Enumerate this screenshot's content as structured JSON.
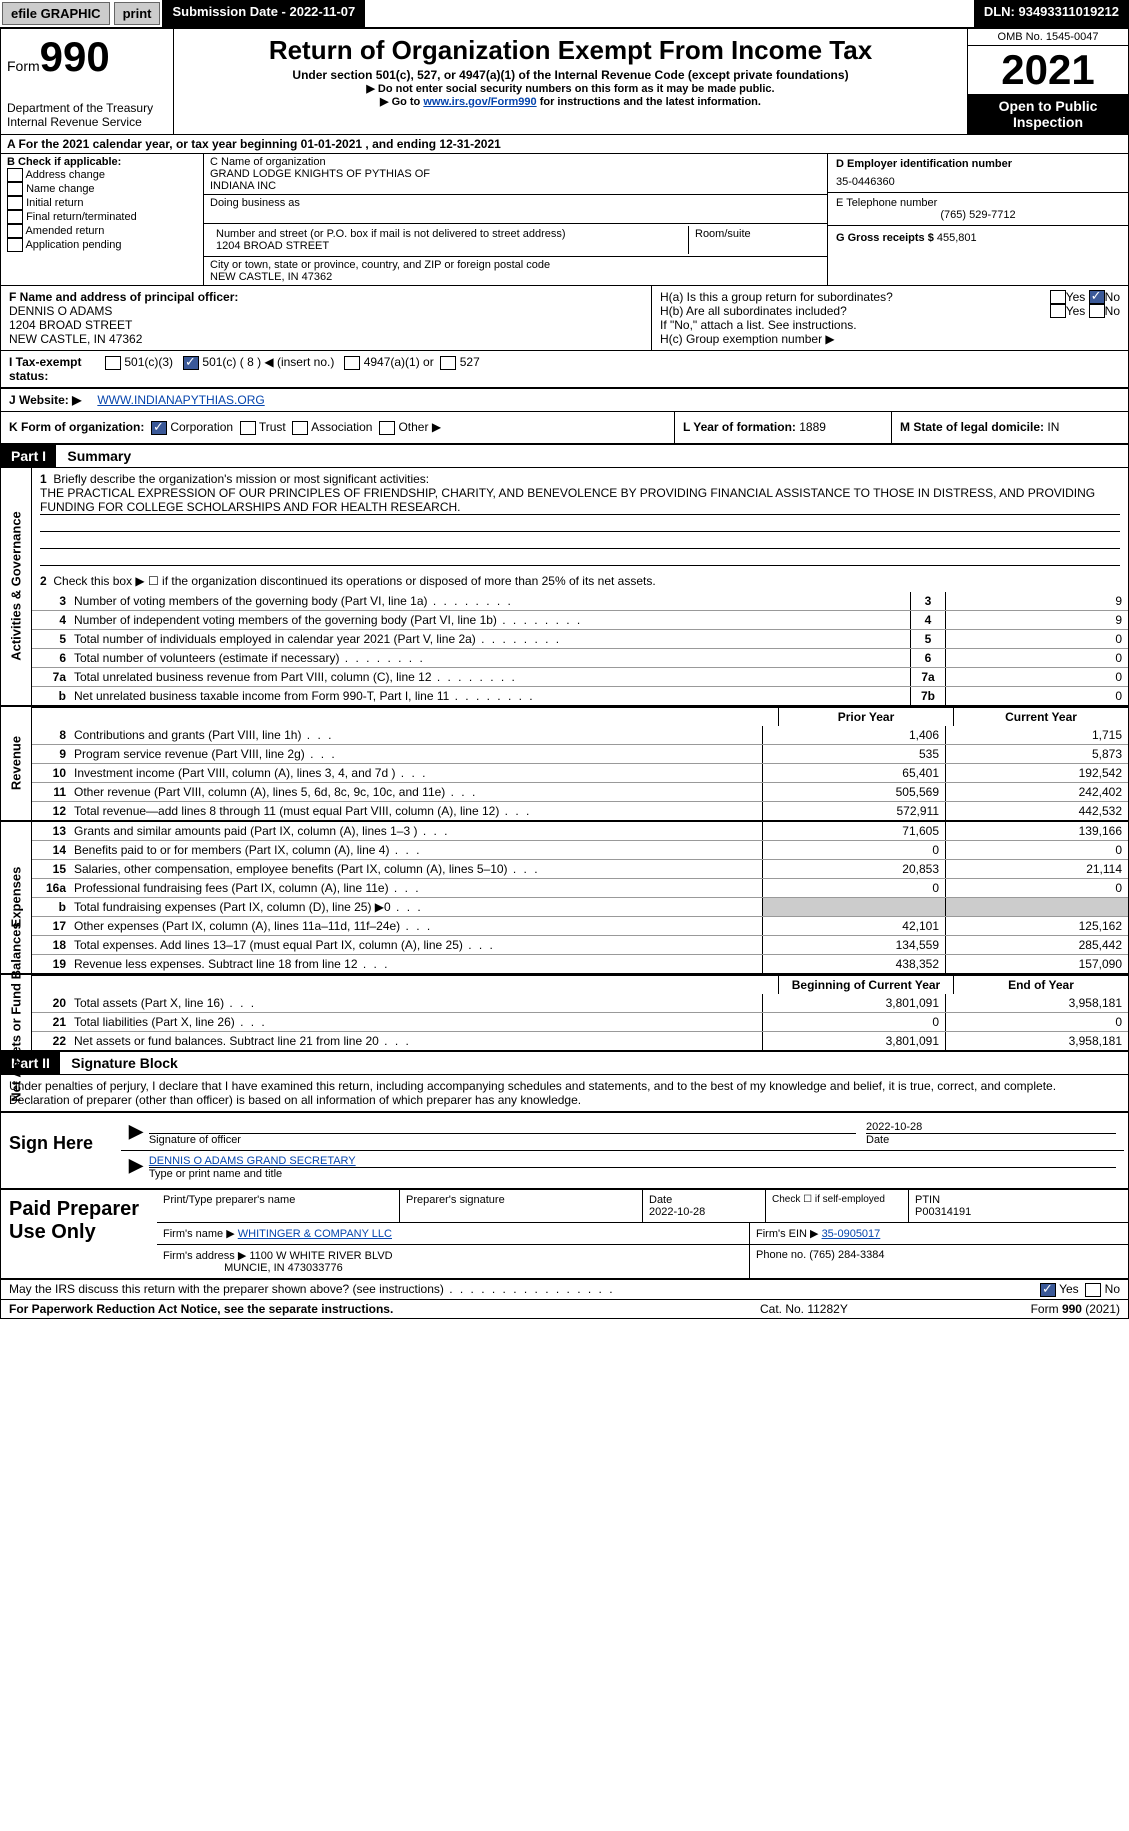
{
  "topbar": {
    "efile": "efile GRAPHIC",
    "print": "print",
    "submission": "Submission Date - 2022-11-07",
    "dln": "DLN: 93493311019212"
  },
  "header": {
    "form": "Form",
    "formno": "990",
    "dept": "Department of the Treasury",
    "irs": "Internal Revenue Service",
    "title": "Return of Organization Exempt From Income Tax",
    "sub1": "Under section 501(c), 527, or 4947(a)(1) of the Internal Revenue Code (except private foundations)",
    "sub2": "▶ Do not enter social security numbers on this form as it may be made public.",
    "sub3a": "▶ Go to ",
    "sub3link": "www.irs.gov/Form990",
    "sub3b": " for instructions and the latest information.",
    "omb": "OMB No. 1545-0047",
    "year": "2021",
    "open": "Open to Public Inspection"
  },
  "rowA": {
    "label": "A For the 2021 calendar year, or tax year beginning ",
    "begin": "01-01-2021",
    "mid": " , and ending ",
    "end": "12-31-2021"
  },
  "colB": {
    "label": "B Check if applicable:",
    "addr": "Address change",
    "name": "Name change",
    "init": "Initial return",
    "final": "Final return/terminated",
    "amend": "Amended return",
    "app": "Application pending"
  },
  "colC": {
    "clabel": "C Name of organization",
    "org1": "GRAND LODGE KNIGHTS OF PYTHIAS OF",
    "org2": "INDIANA INC",
    "dba": "Doing business as",
    "addrlabel": "Number and street (or P.O. box if mail is not delivered to street address)",
    "addr": "1204 BROAD STREET",
    "room": "Room/suite",
    "citylabel": "City or town, state or province, country, and ZIP or foreign postal code",
    "city": "NEW CASTLE, IN  47362"
  },
  "colD": {
    "dlabel": "D Employer identification number",
    "ein": "35-0446360",
    "elabel": "E Telephone number",
    "phone": "(765) 529-7712",
    "glabel": "G Gross receipts $ ",
    "gross": "455,801"
  },
  "rowF": {
    "flabel": "F Name and address of principal officer:",
    "name": "DENNIS O ADAMS",
    "addr": "1204 BROAD STREET",
    "city": "NEW CASTLE, IN  47362",
    "ha": "H(a)  Is this a group return for subordinates?",
    "hb": "H(b)  Are all subordinates included?",
    "hbnote": "If \"No,\" attach a list. See instructions.",
    "hc": "H(c)  Group exemption number ▶",
    "yes": "Yes",
    "no": "No"
  },
  "rowI": {
    "label": "I  Tax-exempt status:",
    "o501c3": "501(c)(3)",
    "o501c": "501(c) ( 8 ) ◀ (insert no.)",
    "o4947": "4947(a)(1) or",
    "o527": "527"
  },
  "rowJ": {
    "label": "J  Website: ▶",
    "url": "WWW.INDIANAPYTHIAS.ORG"
  },
  "rowK": {
    "label": "K Form of organization:",
    "corp": "Corporation",
    "trust": "Trust",
    "assoc": "Association",
    "other": "Other ▶"
  },
  "rowL": {
    "label": "L Year of formation: ",
    "val": "1889"
  },
  "rowM": {
    "label": "M State of legal domicile: ",
    "val": "IN"
  },
  "part1": {
    "hdr": "Part I",
    "title": "Summary"
  },
  "mission": {
    "label": "Briefly describe the organization's mission or most significant activities:",
    "text": "THE PRACTICAL EXPRESSION OF OUR PRINCIPLES OF FRIENDSHIP, CHARITY, AND BENEVOLENCE BY PROVIDING FINANCIAL ASSISTANCE TO THOSE IN DISTRESS, AND PROVIDING FUNDING FOR COLLEGE SCHOLARSHIPS AND FOR HEALTH RESEARCH."
  },
  "l2": "Check this box ▶ ☐ if the organization discontinued its operations or disposed of more than 25% of its net assets.",
  "lines_gov": [
    {
      "n": "3",
      "d": "Number of voting members of the governing body (Part VI, line 1a)",
      "b": "3",
      "v": "9"
    },
    {
      "n": "4",
      "d": "Number of independent voting members of the governing body (Part VI, line 1b)",
      "b": "4",
      "v": "9"
    },
    {
      "n": "5",
      "d": "Total number of individuals employed in calendar year 2021 (Part V, line 2a)",
      "b": "5",
      "v": "0"
    },
    {
      "n": "6",
      "d": "Total number of volunteers (estimate if necessary)",
      "b": "6",
      "v": "0"
    },
    {
      "n": "7a",
      "d": "Total unrelated business revenue from Part VIII, column (C), line 12",
      "b": "7a",
      "v": "0"
    },
    {
      "n": "b",
      "d": "Net unrelated business taxable income from Form 990-T, Part I, line 11",
      "b": "7b",
      "v": "0"
    }
  ],
  "colhdr": {
    "prior": "Prior Year",
    "curr": "Current Year"
  },
  "rev": [
    {
      "n": "8",
      "d": "Contributions and grants (Part VIII, line 1h)",
      "p": "1,406",
      "c": "1,715"
    },
    {
      "n": "9",
      "d": "Program service revenue (Part VIII, line 2g)",
      "p": "535",
      "c": "5,873"
    },
    {
      "n": "10",
      "d": "Investment income (Part VIII, column (A), lines 3, 4, and 7d )",
      "p": "65,401",
      "c": "192,542"
    },
    {
      "n": "11",
      "d": "Other revenue (Part VIII, column (A), lines 5, 6d, 8c, 9c, 10c, and 11e)",
      "p": "505,569",
      "c": "242,402"
    },
    {
      "n": "12",
      "d": "Total revenue—add lines 8 through 11 (must equal Part VIII, column (A), line 12)",
      "p": "572,911",
      "c": "442,532"
    }
  ],
  "exp": [
    {
      "n": "13",
      "d": "Grants and similar amounts paid (Part IX, column (A), lines 1–3 )",
      "p": "71,605",
      "c": "139,166"
    },
    {
      "n": "14",
      "d": "Benefits paid to or for members (Part IX, column (A), line 4)",
      "p": "0",
      "c": "0"
    },
    {
      "n": "15",
      "d": "Salaries, other compensation, employee benefits (Part IX, column (A), lines 5–10)",
      "p": "20,853",
      "c": "21,114"
    },
    {
      "n": "16a",
      "d": "Professional fundraising fees (Part IX, column (A), line 11e)",
      "p": "0",
      "c": "0"
    },
    {
      "n": "b",
      "d": "Total fundraising expenses (Part IX, column (D), line 25) ▶0",
      "p": "",
      "c": "",
      "grey": true
    },
    {
      "n": "17",
      "d": "Other expenses (Part IX, column (A), lines 11a–11d, 11f–24e)",
      "p": "42,101",
      "c": "125,162"
    },
    {
      "n": "18",
      "d": "Total expenses. Add lines 13–17 (must equal Part IX, column (A), line 25)",
      "p": "134,559",
      "c": "285,442"
    },
    {
      "n": "19",
      "d": "Revenue less expenses. Subtract line 18 from line 12",
      "p": "438,352",
      "c": "157,090"
    }
  ],
  "nethdr": {
    "beg": "Beginning of Current Year",
    "end": "End of Year"
  },
  "net": [
    {
      "n": "20",
      "d": "Total assets (Part X, line 16)",
      "p": "3,801,091",
      "c": "3,958,181"
    },
    {
      "n": "21",
      "d": "Total liabilities (Part X, line 26)",
      "p": "0",
      "c": "0"
    },
    {
      "n": "22",
      "d": "Net assets or fund balances. Subtract line 21 from line 20",
      "p": "3,801,091",
      "c": "3,958,181"
    }
  ],
  "part2": {
    "hdr": "Part II",
    "title": "Signature Block"
  },
  "sigtext": "Under penalties of perjury, I declare that I have examined this return, including accompanying schedules and statements, and to the best of my knowledge and belief, it is true, correct, and complete. Declaration of preparer (other than officer) is based on all information of which preparer has any knowledge.",
  "sign": {
    "here": "Sign Here",
    "date": "2022-10-28",
    "siglabel": "Signature of officer",
    "datelabel": "Date",
    "name": "DENNIS O ADAMS GRAND SECRETARY",
    "namelabel": "Type or print name and title"
  },
  "paid": {
    "label": "Paid Preparer Use Only",
    "h1": "Print/Type preparer's name",
    "h2": "Preparer's signature",
    "h3l": "Date",
    "h3": "2022-10-28",
    "h4": "Check ☐ if self-employed",
    "h5l": "PTIN",
    "h5": "P00314191",
    "firmname_l": "Firm's name   ▶",
    "firmname": "WHITINGER & COMPANY LLC",
    "firmein_l": "Firm's EIN ▶",
    "firmein": "35-0905017",
    "firmaddr_l": "Firm's address ▶",
    "firmaddr": "1100 W WHITE RIVER BLVD",
    "firmcity": "MUNCIE, IN  473033776",
    "phone_l": "Phone no. ",
    "phone": "(765) 284-3384"
  },
  "discuss": {
    "q": "May the IRS discuss this return with the preparer shown above? (see instructions)",
    "yes": "Yes",
    "no": "No"
  },
  "footer": {
    "left": "For Paperwork Reduction Act Notice, see the separate instructions.",
    "mid": "Cat. No. 11282Y",
    "right": "Form 990 (2021)"
  },
  "vlabels": {
    "gov": "Activities & Governance",
    "rev": "Revenue",
    "exp": "Expenses",
    "net": "Net Assets or Fund Balances"
  }
}
